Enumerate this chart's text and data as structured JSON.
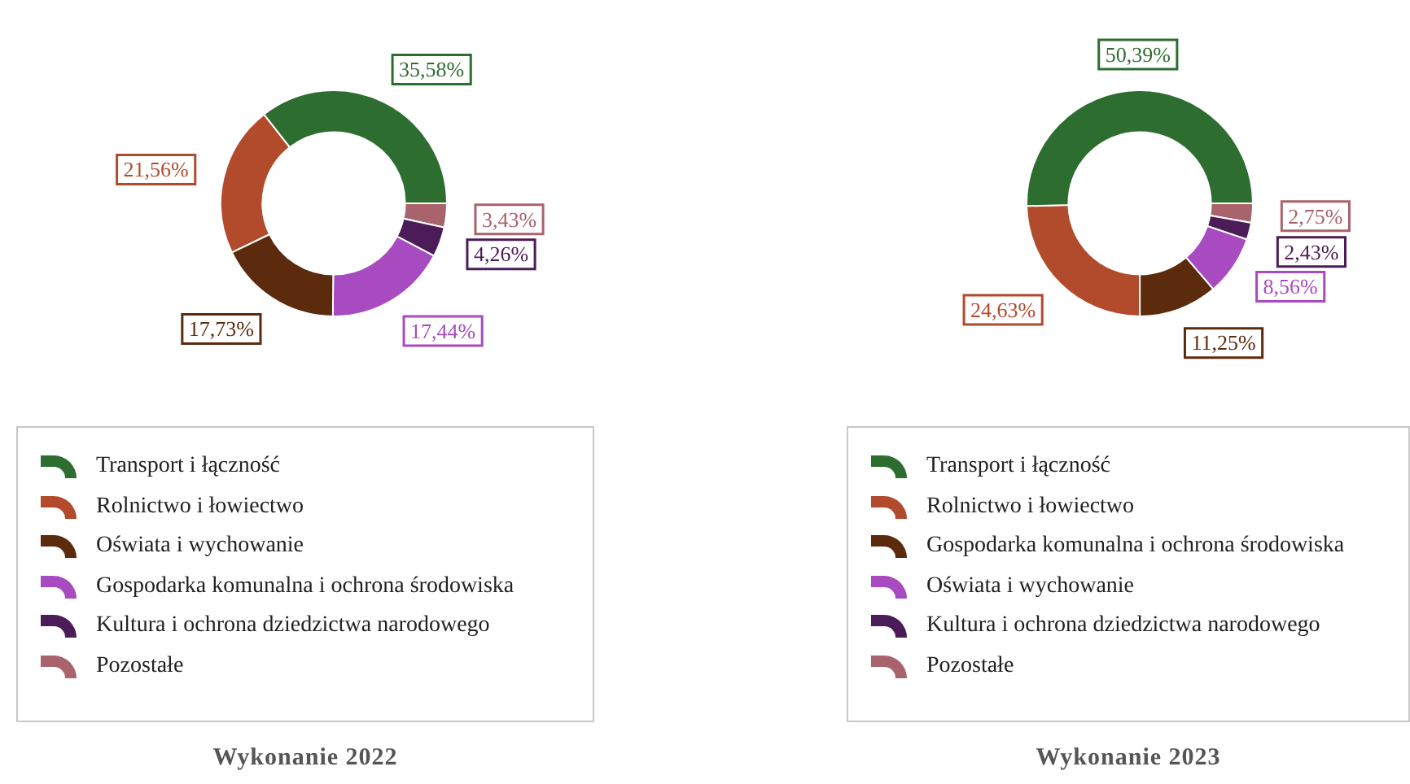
{
  "chart_data": [
    {
      "type": "donut",
      "title": "Wykonanie 2022",
      "legend": "bottom",
      "categories": [
        "Transport i łączność",
        "Rolnictwo i łowiectwo",
        "Oświata i wychowanie",
        "Gospodarka komunalna i ochrona środowiska",
        "Kultura i ochrona dziedzictwa narodowego",
        "Pozostałe"
      ],
      "values": [
        35.58,
        21.56,
        17.73,
        17.44,
        4.26,
        3.43
      ],
      "value_labels": [
        "35,58%",
        "21,56%",
        "17,73%",
        "17,44%",
        "4,26%",
        "3,43%"
      ],
      "colors": [
        "#2d6e30",
        "#b24a2c",
        "#5c2a0c",
        "#a84ac0",
        "#4b1c58",
        "#a8636c"
      ]
    },
    {
      "type": "donut",
      "title": "Wykonanie 2023",
      "legend": "bottom",
      "categories": [
        "Transport i łączność",
        "Rolnictwo i łowiectwo",
        "Gospodarka komunalna i ochrona środowiska",
        "Oświata i wychowanie",
        "Kultura i ochrona dziedzictwa narodowego",
        "Pozostałe"
      ],
      "values": [
        50.39,
        24.63,
        11.25,
        8.56,
        2.43,
        2.75
      ],
      "value_labels": [
        "50,39%",
        "24,63%",
        "11,25%",
        "8,56%",
        "2,43%",
        "2,75%"
      ],
      "colors": [
        "#2d6e30",
        "#b24a2c",
        "#5c2a0c",
        "#a84ac0",
        "#4b1c58",
        "#a8636c"
      ]
    }
  ]
}
